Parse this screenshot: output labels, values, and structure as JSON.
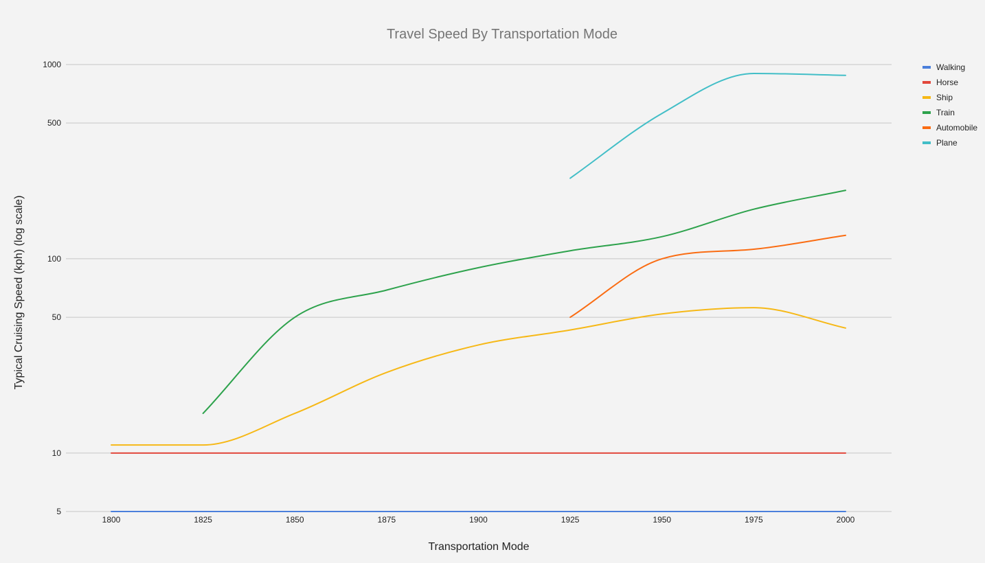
{
  "chart_data": {
    "type": "line",
    "title": "Travel Speed By Transportation Mode",
    "xlabel": "Transportation Mode",
    "ylabel": "Typical Cruising Speed (kph) (log scale)",
    "y_scale": "log",
    "ylim": [
      5,
      1000
    ],
    "xlim": [
      1800,
      2000
    ],
    "x_ticks": [
      "1800",
      "1825",
      "1850",
      "1875",
      "1900",
      "1925",
      "1950",
      "1975",
      "2000"
    ],
    "y_ticks": [
      "5",
      "10",
      "50",
      "100",
      "500",
      "1000"
    ],
    "grid": true,
    "legend_position": "right",
    "series": [
      {
        "name": "Walking",
        "color": "#4a7fdb",
        "points": [
          [
            1800,
            5
          ],
          [
            1825,
            5
          ],
          [
            1850,
            5
          ],
          [
            1875,
            5
          ],
          [
            1900,
            5
          ],
          [
            1925,
            5
          ],
          [
            1950,
            5
          ],
          [
            1975,
            5
          ],
          [
            2000,
            5
          ]
        ]
      },
      {
        "name": "Horse",
        "color": "#e2473b",
        "points": [
          [
            1800,
            10
          ],
          [
            1825,
            10
          ],
          [
            1850,
            10
          ],
          [
            1875,
            10
          ],
          [
            1900,
            10
          ],
          [
            1925,
            10
          ],
          [
            1950,
            10
          ],
          [
            1975,
            10
          ],
          [
            2000,
            10
          ]
        ]
      },
      {
        "name": "Ship",
        "color": "#f6b816",
        "points": [
          [
            1800,
            11
          ],
          [
            1825,
            11
          ],
          [
            1850,
            16
          ],
          [
            1875,
            26
          ],
          [
            1900,
            36
          ],
          [
            1925,
            43
          ],
          [
            1950,
            52
          ],
          [
            1975,
            56
          ],
          [
            2000,
            44
          ]
        ]
      },
      {
        "name": "Train",
        "color": "#2da24c",
        "points": [
          [
            1825,
            16
          ],
          [
            1850,
            50
          ],
          [
            1875,
            69
          ],
          [
            1900,
            90
          ],
          [
            1925,
            110
          ],
          [
            1950,
            130
          ],
          [
            1975,
            180
          ],
          [
            2000,
            225
          ]
        ]
      },
      {
        "name": "Automobile",
        "color": "#fa6c12",
        "points": [
          [
            1925,
            50
          ],
          [
            1950,
            100
          ],
          [
            1975,
            112
          ],
          [
            2000,
            132
          ]
        ]
      },
      {
        "name": "Plane",
        "color": "#42bec7",
        "points": [
          [
            1925,
            260
          ],
          [
            1950,
            560
          ],
          [
            1975,
            900
          ],
          [
            2000,
            880
          ]
        ]
      }
    ]
  }
}
